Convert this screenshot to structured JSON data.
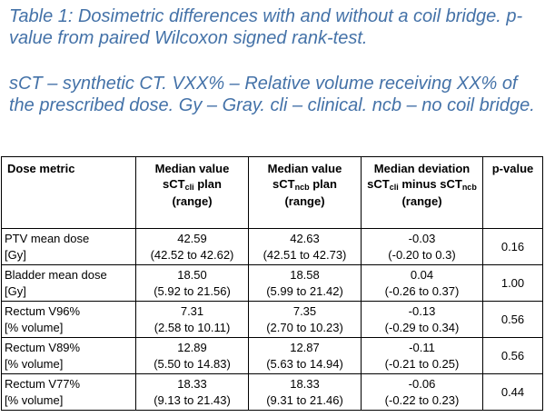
{
  "caption": {
    "line1": "Table 1: Dosimetric differences with and without a coil bridge. p-value from paired Wilcoxon signed rank-test.",
    "line2": "sCT – synthetic CT. VXX% – Relative volume receiving XX% of the prescribed dose. Gy – Gray. cli – clinical. ncb – no coil bridge."
  },
  "table": {
    "headers": {
      "metric": "Dose metric",
      "cli_line1": "Median value",
      "cli_base": "sCT",
      "cli_sub": "cli",
      "cli_tail": " plan",
      "cli_range": "(range)",
      "ncb_line1": "Median value",
      "ncb_base": "sCT",
      "ncb_sub": "ncb",
      "ncb_tail": " plan",
      "ncb_range": "(range)",
      "dev_line1": "Median deviation",
      "dev_base1": "sCT",
      "dev_sub1": "cli",
      "dev_mid": " minus sCT",
      "dev_sub2": "ncb",
      "dev_range": "(range)",
      "p": "p-value"
    },
    "rows": [
      {
        "m1": "PTV mean dose",
        "m2": "[Gy]",
        "cli": "42.59",
        "cli_r": "(42.52 to 42.62)",
        "ncb": "42.63",
        "ncb_r": "(42.51 to 42.73)",
        "dev": "-0.03",
        "dev_r": "(-0.20 to 0.3)",
        "p": "0.16"
      },
      {
        "m1": "Bladder mean dose",
        "m2": "[Gy]",
        "cli": "18.50",
        "cli_r": "(5.92 to 21.56)",
        "ncb": "18.58",
        "ncb_r": "(5.99 to 21.42)",
        "dev": "0.04",
        "dev_r": "(-0.26 to 0.37)",
        "p": "1.00"
      },
      {
        "m1": "Rectum V96%",
        "m2": "[% volume]",
        "cli": "7.31",
        "cli_r": "(2.58 to 10.11)",
        "ncb": "7.35",
        "ncb_r": "(2.70 to 10.23)",
        "dev": "-0.13",
        "dev_r": "(-0.29 to 0.34)",
        "p": "0.56"
      },
      {
        "m1": "Rectum V89%",
        "m2": "[% volume]",
        "cli": "12.89",
        "cli_r": "(5.50 to 14.83)",
        "ncb": "12.87",
        "ncb_r": "(5.63 to 14.94)",
        "dev": "-0.11",
        "dev_r": "(-0.21 to 0.25)",
        "p": "0.56"
      },
      {
        "m1": "Rectum V77%",
        "m2": "[% volume]",
        "cli": "18.33",
        "cli_r": "(9.13 to 21.43)",
        "ncb": "18.33",
        "ncb_r": "(9.31 to 21.46)",
        "dev": "-0.06",
        "dev_r": "(-0.22 to 0.23)",
        "p": "0.44"
      }
    ]
  }
}
